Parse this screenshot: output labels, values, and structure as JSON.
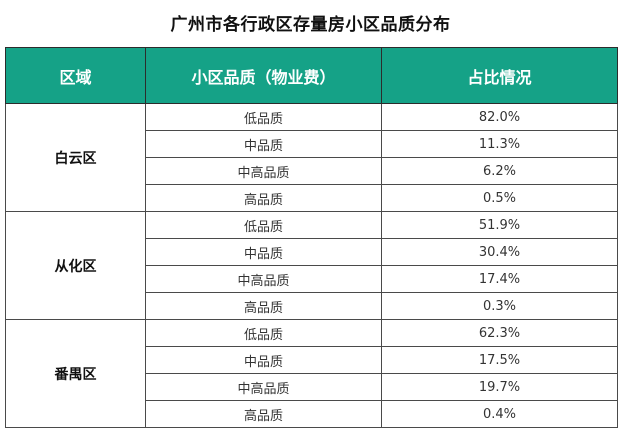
{
  "title": "广州市各行政区存量房小区品质分布",
  "headers": [
    "区域",
    "小区品质（物业费）",
    "占比情况"
  ],
  "groups": [
    {
      "district": "白云区",
      "rows": [
        {
          "quality": "低品质",
          "share": "82.0%"
        },
        {
          "quality": "中品质",
          "share": "11.3%"
        },
        {
          "quality": "中高品质",
          "share": "6.2%"
        },
        {
          "quality": "高品质",
          "share": "0.5%"
        }
      ]
    },
    {
      "district": "从化区",
      "rows": [
        {
          "quality": "低品质",
          "share": "51.9%"
        },
        {
          "quality": "中品质",
          "share": "30.4%"
        },
        {
          "quality": "中高品质",
          "share": "17.4%"
        },
        {
          "quality": "高品质",
          "share": "0.3%"
        }
      ]
    },
    {
      "district": "番禺区",
      "rows": [
        {
          "quality": "低品质",
          "share": "62.3%"
        },
        {
          "quality": "中品质",
          "share": "17.5%"
        },
        {
          "quality": "中高品质",
          "share": "19.7%"
        },
        {
          "quality": "高品质",
          "share": "0.4%"
        }
      ]
    }
  ]
}
